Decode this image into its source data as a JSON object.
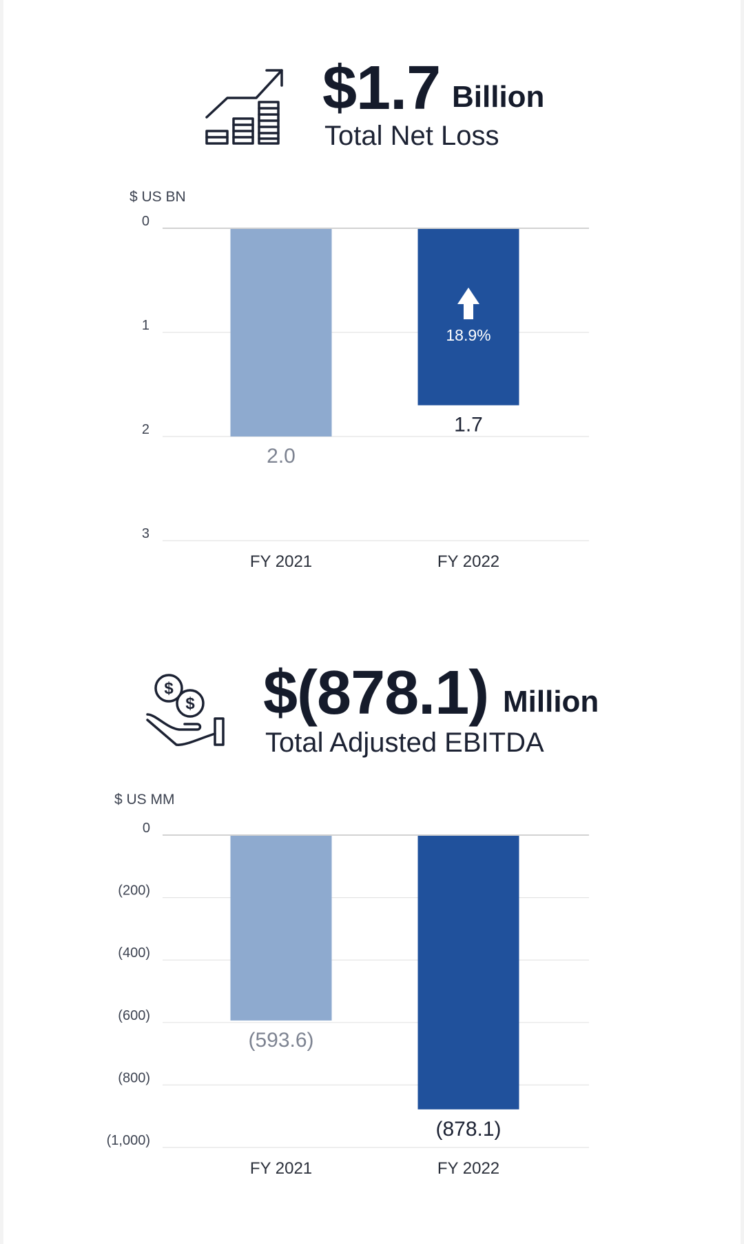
{
  "kpis": [
    {
      "amount": "$1.7",
      "unit": "Billion",
      "label": "Total Net Loss",
      "icon": "growth-chart-icon"
    },
    {
      "amount": "$(878.1)",
      "unit": "Million",
      "label": "Total Adjusted EBITDA",
      "icon": "money-hand-icon"
    }
  ],
  "colors": {
    "fy2021": "#8eaacf",
    "fy2022": "#20519c",
    "grid": "#e4e4e4",
    "axis_zero": "#d2d2d2"
  },
  "chart_data": [
    {
      "type": "bar",
      "unit_label": "$ US BN",
      "categories": [
        "FY 2021",
        "FY 2022"
      ],
      "values": [
        2.0,
        1.7
      ],
      "value_labels": [
        "2.0",
        "1.7"
      ],
      "ylim": [
        0,
        3
      ],
      "yticks": [
        0,
        1,
        2,
        3
      ],
      "ytick_labels": [
        "0",
        "1",
        "2",
        "3"
      ],
      "inverted": true,
      "grid": true,
      "annotation": {
        "category": "FY 2022",
        "text": "18.9%",
        "icon": "arrow-up-icon"
      }
    },
    {
      "type": "bar",
      "unit_label": "$ US MM",
      "categories": [
        "FY 2021",
        "FY 2022"
      ],
      "values": [
        -593.6,
        -878.1
      ],
      "value_labels": [
        "(593.6)",
        "(878.1)"
      ],
      "ylim": [
        -1000,
        0
      ],
      "yticks": [
        0,
        -200,
        -400,
        -600,
        -800,
        -1000
      ],
      "ytick_labels": [
        "0",
        "(200)",
        "(400)",
        "(600)",
        "(800)",
        "(1,000)"
      ],
      "inverted": false,
      "grid": true
    }
  ]
}
